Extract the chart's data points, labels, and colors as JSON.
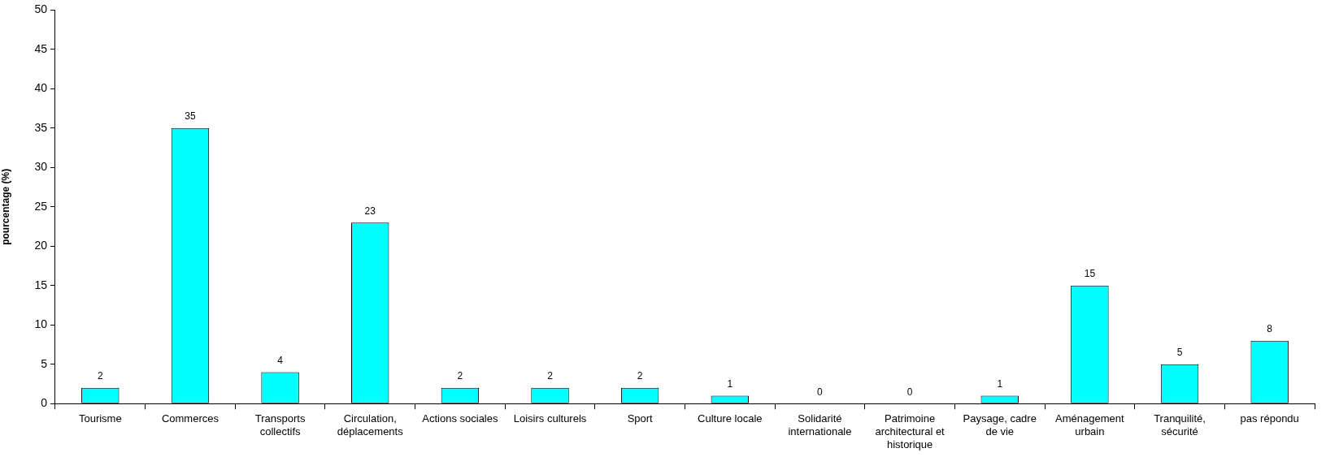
{
  "chart_data": {
    "type": "bar",
    "ylabel": "pourcentage (%)",
    "categories": [
      "Tourisme",
      "Commerces",
      "Transports collectifs",
      "Circulation, déplacements",
      "Actions sociales",
      "Loisirs culturels",
      "Sport",
      "Culture locale",
      "Solidarité internationale",
      "Patrimoine architectural et historique",
      "Paysage, cadre de vie",
      "Aménagement urbain",
      "Tranquilité, sécurité",
      "pas répondu"
    ],
    "values": [
      2,
      35,
      4,
      23,
      2,
      2,
      2,
      1,
      0,
      0,
      1,
      15,
      5,
      8
    ],
    "color": "#00ffff",
    "ylim": [
      0,
      50
    ],
    "yticks": [
      0,
      5,
      10,
      15,
      20,
      25,
      30,
      35,
      40,
      45,
      50
    ],
    "data_labels": true
  }
}
